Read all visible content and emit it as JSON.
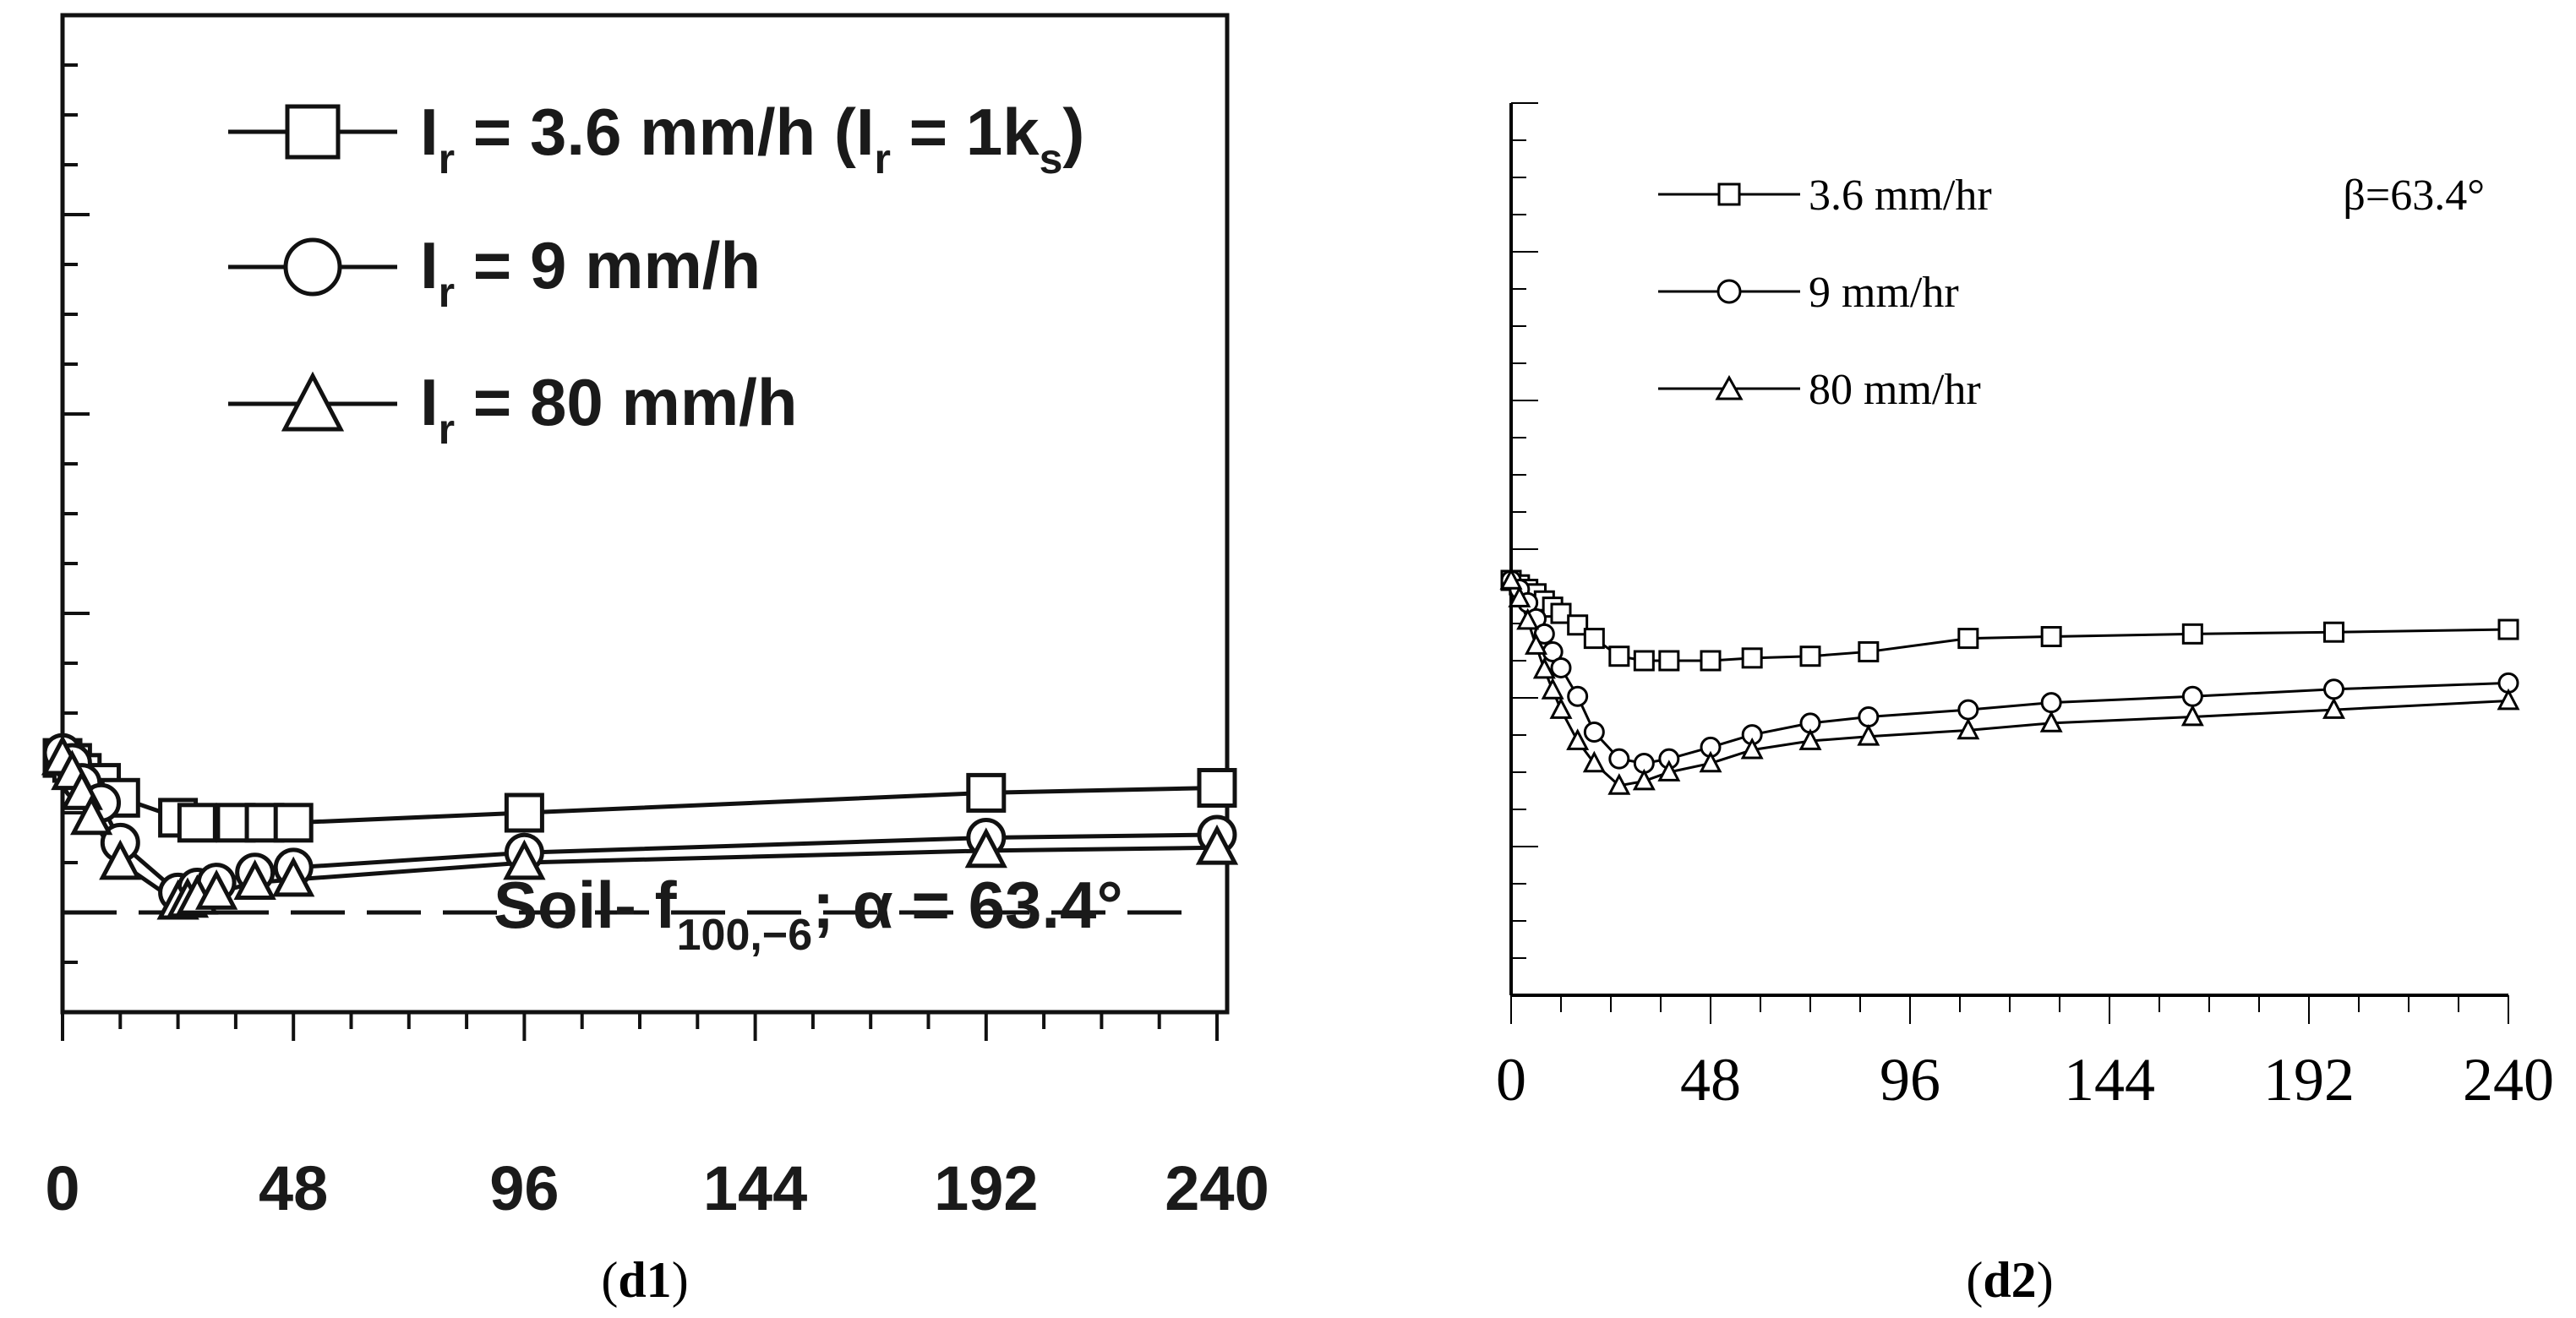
{
  "captions": {
    "d1_open": "(",
    "d1_bold": "d1",
    "d1_close": ")",
    "d2_open": "(",
    "d2_bold": "d2",
    "d2_close": ")"
  },
  "chart_data": [
    {
      "type": "line",
      "panel": "d1",
      "x_ticks": [
        "0",
        "48",
        "96",
        "144",
        "192",
        "240"
      ],
      "xlim": [
        0,
        240
      ],
      "ylim": [
        0,
        10
      ],
      "annotation": {
        "prefix": "Soil- f",
        "subscript": "100,−6",
        "suffix": "; α = 63.4°"
      },
      "reference_line_y": 1.0,
      "series": [
        {
          "name": "Ir = 3.6 mm/h (Ir = 1ks)",
          "legend": {
            "I": "I",
            "r": "r",
            "mid": " = 3.6 mm/h (",
            "r2": "r",
            "mid2": " = 1k",
            "s": "s",
            "end": ")"
          },
          "marker": "square",
          "x": [
            0,
            2,
            4,
            8,
            12,
            24,
            28,
            36,
            42,
            48,
            96,
            192,
            240
          ],
          "y": [
            2.55,
            2.5,
            2.4,
            2.3,
            2.15,
            1.95,
            1.9,
            1.9,
            1.9,
            1.9,
            2.0,
            2.2,
            2.25
          ]
        },
        {
          "name": "Ir = 9 mm/h",
          "legend": {
            "I": "I",
            "r": "r",
            "mid": " = 9 mm/h"
          },
          "marker": "circle",
          "x": [
            0,
            2,
            4,
            8,
            12,
            24,
            28,
            32,
            40,
            48,
            96,
            192,
            240
          ],
          "y": [
            2.6,
            2.5,
            2.3,
            2.1,
            1.7,
            1.2,
            1.25,
            1.3,
            1.4,
            1.45,
            1.6,
            1.75,
            1.78
          ]
        },
        {
          "name": "Ir = 80 mm/h",
          "legend": {
            "I": "I",
            "r": "r",
            "mid": " = 80 mm/h"
          },
          "marker": "triangle",
          "x": [
            0,
            2,
            4,
            6,
            12,
            24,
            26,
            28,
            32,
            40,
            48,
            96,
            192,
            240
          ],
          "y": [
            2.55,
            2.4,
            2.2,
            1.95,
            1.5,
            1.1,
            1.12,
            1.15,
            1.2,
            1.3,
            1.33,
            1.5,
            1.62,
            1.65
          ]
        }
      ]
    },
    {
      "type": "line",
      "panel": "d2",
      "x_ticks": [
        "0",
        "48",
        "96",
        "144",
        "192",
        "240"
      ],
      "xlim": [
        0,
        240
      ],
      "ylim": [
        0,
        10
      ],
      "annotation": "β=63.4°",
      "series": [
        {
          "name": "3.6 mm/hr",
          "marker": "square",
          "x": [
            0,
            2,
            4,
            6,
            8,
            10,
            12,
            16,
            20,
            26,
            32,
            38,
            48,
            58,
            72,
            86,
            110,
            130,
            164,
            198,
            240
          ],
          "y": [
            4.65,
            4.6,
            4.55,
            4.5,
            4.42,
            4.35,
            4.28,
            4.15,
            4.0,
            3.8,
            3.75,
            3.75,
            3.75,
            3.78,
            3.8,
            3.85,
            4.0,
            4.02,
            4.05,
            4.07,
            4.1
          ]
        },
        {
          "name": "9 mm/hr",
          "marker": "circle",
          "x": [
            0,
            2,
            4,
            6,
            8,
            10,
            12,
            16,
            20,
            26,
            32,
            38,
            48,
            58,
            72,
            86,
            110,
            130,
            164,
            198,
            240
          ],
          "y": [
            4.65,
            4.55,
            4.4,
            4.22,
            4.05,
            3.85,
            3.67,
            3.35,
            2.95,
            2.65,
            2.6,
            2.65,
            2.78,
            2.92,
            3.05,
            3.12,
            3.2,
            3.28,
            3.35,
            3.43,
            3.5
          ]
        },
        {
          "name": "80 mm/hr",
          "marker": "triangle",
          "x": [
            0,
            2,
            4,
            6,
            8,
            10,
            12,
            16,
            20,
            26,
            32,
            38,
            48,
            58,
            72,
            86,
            110,
            130,
            164,
            198,
            240
          ],
          "y": [
            4.65,
            4.45,
            4.2,
            3.92,
            3.65,
            3.42,
            3.2,
            2.85,
            2.6,
            2.35,
            2.4,
            2.5,
            2.6,
            2.75,
            2.85,
            2.9,
            2.97,
            3.05,
            3.12,
            3.2,
            3.3
          ]
        }
      ]
    }
  ]
}
